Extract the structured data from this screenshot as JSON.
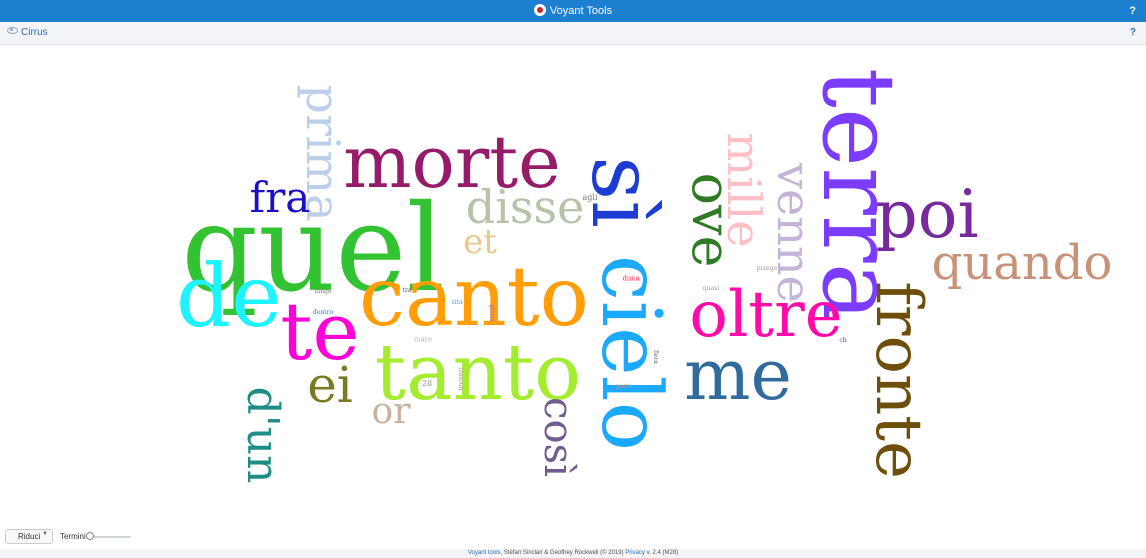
{
  "header": {
    "title": "Voyant Tools",
    "help": "?"
  },
  "panel": {
    "title": "Cirrus",
    "help": "?"
  },
  "cloud": {
    "words": [
      {
        "text": "quel",
        "color": "#33c232",
        "rot": false
      },
      {
        "text": "canto",
        "color": "#ff9e08",
        "rot": false
      },
      {
        "text": "tanto",
        "color": "#a4ec2e",
        "rot": false
      },
      {
        "text": "te",
        "color": "#ff00d8",
        "rot": false
      },
      {
        "text": "de",
        "color": "#1ff3ff",
        "rot": false
      },
      {
        "text": "morte",
        "color": "#951c68",
        "rot": false
      },
      {
        "text": "terra",
        "color": "#7c3cff",
        "rot": true
      },
      {
        "text": "sì",
        "color": "#1c3cd4",
        "rot": true
      },
      {
        "text": "cielo",
        "color": "#1ba9ff",
        "rot": true
      },
      {
        "text": "oltre",
        "color": "#ff0baa",
        "rot": false
      },
      {
        "text": "me",
        "color": "#316b9e",
        "rot": false
      },
      {
        "text": "poi",
        "color": "#762a9b",
        "rot": false
      },
      {
        "text": "fronte",
        "color": "#6e4e0a",
        "rot": true
      },
      {
        "text": "quando",
        "color": "#c89278",
        "rot": false
      },
      {
        "text": "ove",
        "color": "#2f7b25",
        "rot": true
      },
      {
        "text": "mille",
        "color": "#ffbfc4",
        "rot": true
      },
      {
        "text": "venne",
        "color": "#c3b4d8",
        "rot": true
      },
      {
        "text": "prima",
        "color": "#bccfea",
        "rot": true
      },
      {
        "text": "disse",
        "color": "#b5c3a9",
        "rot": false
      },
      {
        "text": "et",
        "color": "#e6c98e",
        "rot": false
      },
      {
        "text": "fra",
        "color": "#1a10c8",
        "rot": false
      },
      {
        "text": "ei",
        "color": "#7a7a22",
        "rot": false
      },
      {
        "text": "or",
        "color": "#c9b19c",
        "rot": false
      },
      {
        "text": "d'un",
        "color": "#1e8d85",
        "rot": true
      },
      {
        "text": "così",
        "color": "#715c8f",
        "rot": true
      },
      {
        "text": "agli",
        "color": "#777777",
        "rot": false
      },
      {
        "text": "duca",
        "color": "#ff1e46",
        "rot": false
      },
      {
        "text": "lungo",
        "color": "#777777",
        "rot": false
      },
      {
        "text": "dentro",
        "color": "#3a6fd1",
        "rot": false
      },
      {
        "text": "tra",
        "color": "#555555",
        "rot": false
      },
      {
        "text": "gloria",
        "color": "#b06fb0",
        "rot": true
      },
      {
        "text": "ch",
        "color": "#3452b8",
        "rot": false
      },
      {
        "text": "parte",
        "color": "#b79a7a",
        "rot": false
      },
      {
        "text": "piange",
        "color": "#999999",
        "rot": false
      },
      {
        "text": "quasi",
        "color": "#999999",
        "rot": false
      },
      {
        "text": "mare",
        "color": "#b9b9b9",
        "rot": false
      },
      {
        "text": "ciascun",
        "color": "#d66bb5",
        "rot": true
      },
      {
        "text": "fiera",
        "color": "#666666",
        "rot": true
      },
      {
        "text": "vita",
        "color": "#33a3ff",
        "rot": false
      },
      {
        "text": "28",
        "color": "#999999",
        "rot": false
      }
    ]
  },
  "toolbar": {
    "reduce_label": "Riduci",
    "terms_label": "Termini",
    "terms_value": 0.05
  },
  "footer": {
    "voyant": "Voyant tools",
    "authors": ", Stéfan Sinclair & Geoffrey Rockwell (© 2019)",
    "privacy": "Privacy",
    "version": " v. 2.4 (M28)"
  }
}
